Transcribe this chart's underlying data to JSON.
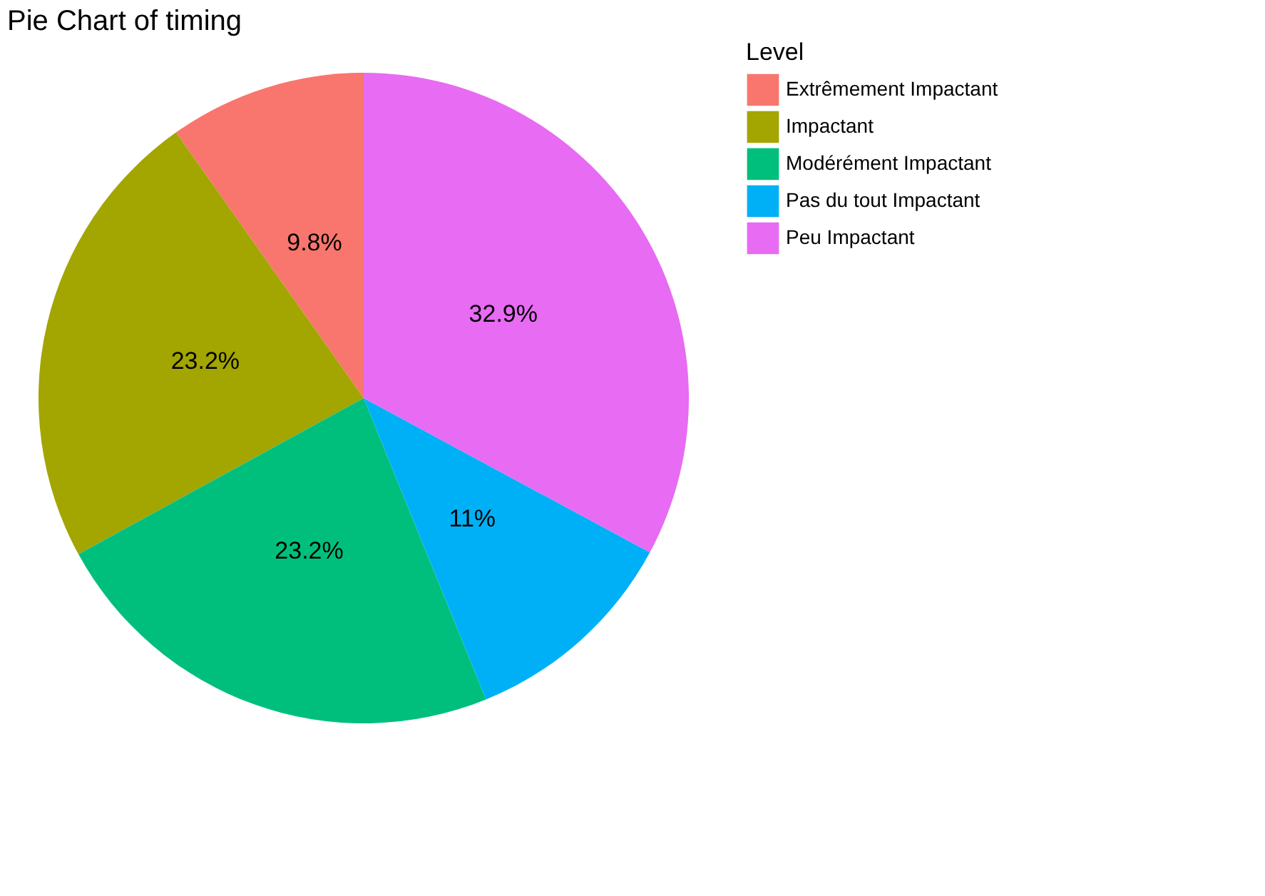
{
  "chart_data": {
    "type": "pie",
    "title": "Pie Chart of timing",
    "legend_title": "Level",
    "categories": [
      "Extrêmement Impactant",
      "Impactant",
      "Modérément Impactant",
      "Pas du tout Impactant",
      "Peu Impactant"
    ],
    "values": [
      9.8,
      23.2,
      23.2,
      11,
      32.9
    ],
    "value_labels": [
      "9.8%",
      "23.2%",
      "23.2%",
      "11%",
      "32.9%"
    ],
    "colors": [
      "#f8766d",
      "#a3a500",
      "#00bf7d",
      "#00b0f6",
      "#e76bf3"
    ],
    "legend": "right"
  }
}
